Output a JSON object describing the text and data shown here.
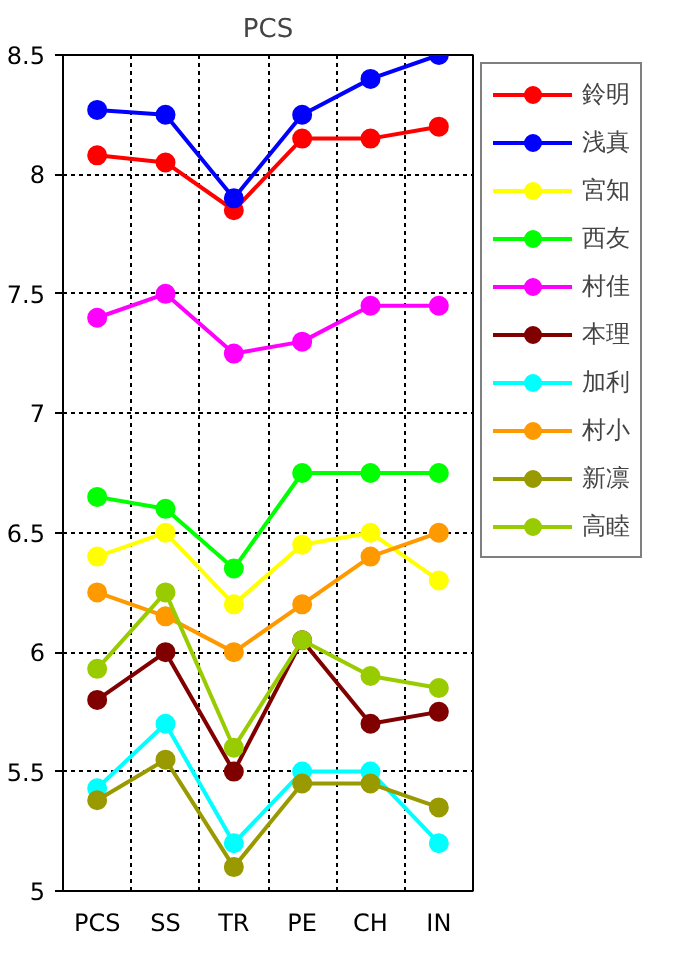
{
  "chart_data": {
    "type": "line",
    "title": "PCS",
    "categories": [
      "PCS",
      "SS",
      "TR",
      "PE",
      "CH",
      "IN"
    ],
    "series": [
      {
        "name": "鈴明",
        "color": "#ff0000",
        "values": [
          8.08,
          8.05,
          7.85,
          8.15,
          8.15,
          8.2
        ]
      },
      {
        "name": "浅真",
        "color": "#0000ff",
        "values": [
          8.27,
          8.25,
          7.9,
          8.25,
          8.4,
          8.5
        ]
      },
      {
        "name": "宮知",
        "color": "#ffff00",
        "values": [
          6.4,
          6.5,
          6.2,
          6.45,
          6.5,
          6.3
        ]
      },
      {
        "name": "西友",
        "color": "#00ff00",
        "values": [
          6.65,
          6.6,
          6.35,
          6.75,
          6.75,
          6.75
        ]
      },
      {
        "name": "村佳",
        "color": "#ff00ff",
        "values": [
          7.4,
          7.5,
          7.25,
          7.3,
          7.45,
          7.45
        ]
      },
      {
        "name": "本理",
        "color": "#800000",
        "values": [
          5.8,
          6.0,
          5.5,
          6.05,
          5.7,
          5.75
        ]
      },
      {
        "name": "加利",
        "color": "#00ffff",
        "values": [
          5.43,
          5.7,
          5.2,
          5.5,
          5.5,
          5.2
        ]
      },
      {
        "name": "村小",
        "color": "#ff9900",
        "values": [
          6.25,
          6.15,
          6.0,
          6.2,
          6.4,
          6.5
        ]
      },
      {
        "name": "新凛",
        "color": "#999900",
        "values": [
          5.38,
          5.55,
          5.1,
          5.45,
          5.45,
          5.35
        ]
      },
      {
        "name": "高睦",
        "color": "#99cc00",
        "values": [
          5.93,
          6.25,
          5.6,
          6.05,
          5.9,
          5.85
        ]
      }
    ],
    "ylim": [
      5,
      8.5
    ],
    "yticks": [
      5,
      5.5,
      6,
      6.5,
      7,
      7.5,
      8,
      8.5
    ],
    "grid": true,
    "legend": "top right",
    "marker": "circle",
    "line_style": "solid"
  }
}
